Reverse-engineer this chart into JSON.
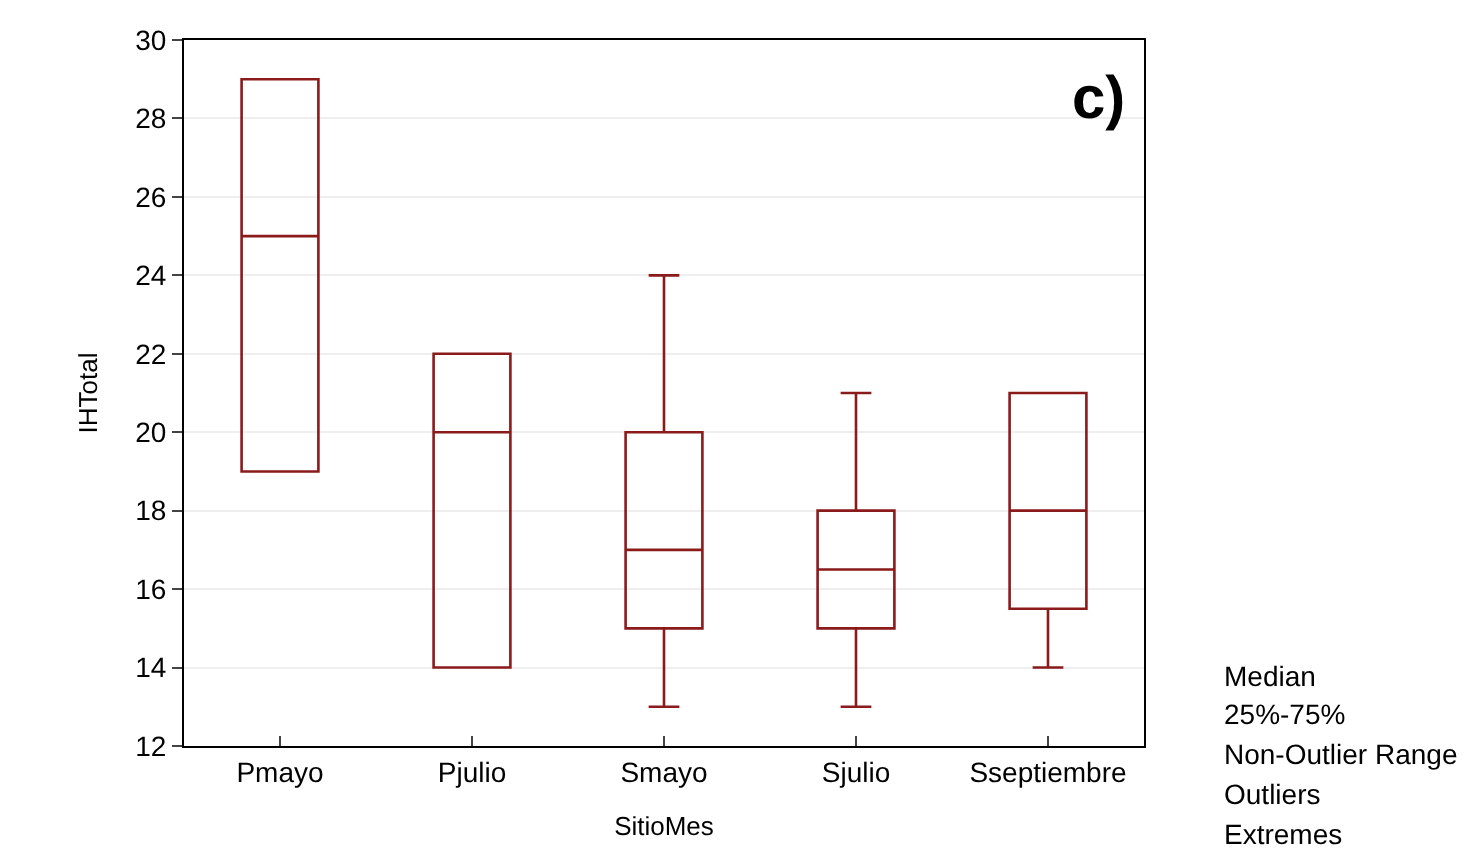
{
  "chart_data": {
    "type": "box",
    "xlabel": "SitioMes",
    "ylabel": "IHTotal",
    "categories": [
      "Pmayo",
      "Pjulio",
      "Smayo",
      "Sjulio",
      "Sseptiembre"
    ],
    "boxes": [
      {
        "low": 19,
        "q1": 19,
        "median": 25,
        "q3": 29,
        "high": 29
      },
      {
        "low": 14,
        "q1": 14,
        "median": 20,
        "q3": 22,
        "high": 22
      },
      {
        "low": 13,
        "q1": 15,
        "median": 17,
        "q3": 20,
        "high": 24
      },
      {
        "low": 13,
        "q1": 15,
        "median": 16.5,
        "q3": 18,
        "high": 21
      },
      {
        "low": 14,
        "q1": 15.5,
        "median": 18,
        "q3": 21,
        "high": 21
      }
    ],
    "color": "#8b1a1a",
    "ylim": [
      12,
      30
    ],
    "yticks": [
      12,
      14,
      16,
      18,
      20,
      22,
      24,
      26,
      28,
      30
    ],
    "grid": "y",
    "annotations": [
      "c)",
      "Median",
      "25%-75%",
      "Non-Outlier Range",
      "Outliers",
      "Extremes"
    ]
  }
}
